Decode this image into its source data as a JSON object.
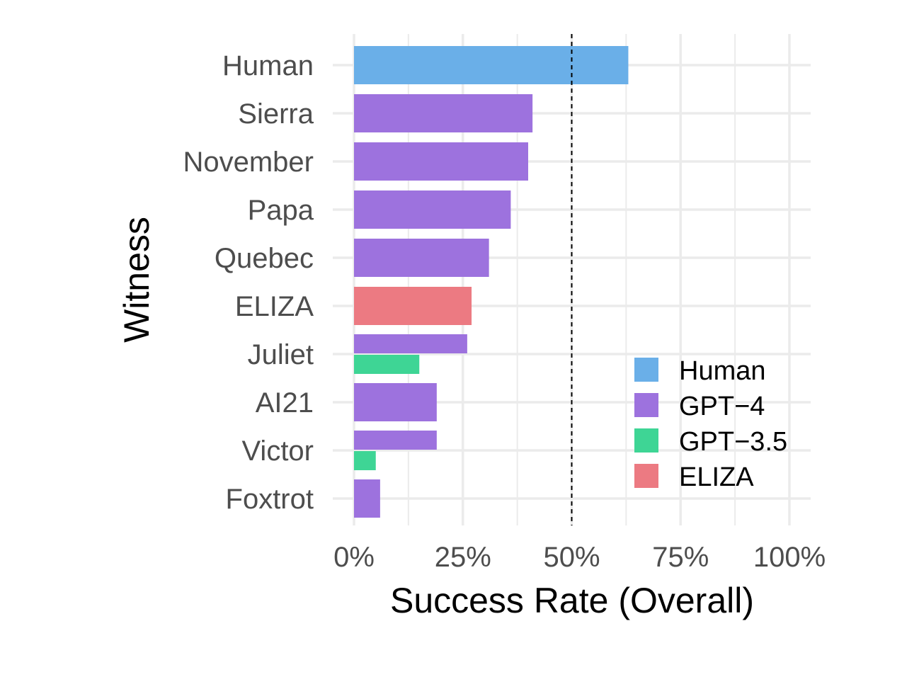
{
  "chart_data": {
    "type": "bar",
    "orientation": "horizontal",
    "title": "",
    "xlabel": "Success Rate (Overall)",
    "ylabel": "Witness",
    "xlim": [
      0,
      100
    ],
    "x_ticks": [
      0,
      25,
      50,
      75,
      100
    ],
    "x_tick_labels": [
      "0%",
      "25%",
      "50%",
      "75%",
      "100%"
    ],
    "reference_line": {
      "value": 50,
      "style": "dashed"
    },
    "categories": [
      "Human",
      "Sierra",
      "November",
      "Papa",
      "Quebec",
      "ELIZA",
      "Juliet",
      "AI21",
      "Victor",
      "Foxtrot"
    ],
    "series": [
      {
        "name": "Human",
        "color": "#6AAFE8",
        "values": [
          63,
          null,
          null,
          null,
          null,
          null,
          null,
          null,
          null,
          null
        ]
      },
      {
        "name": "GPT−4",
        "color": "#9D72DE",
        "values": [
          null,
          41,
          40,
          36,
          31,
          null,
          26,
          19,
          19,
          6
        ]
      },
      {
        "name": "GPT−3.5",
        "color": "#3ED595",
        "values": [
          null,
          null,
          null,
          null,
          null,
          null,
          15,
          null,
          5,
          null
        ]
      },
      {
        "name": "ELIZA",
        "color": "#EC7A82",
        "values": [
          null,
          null,
          null,
          null,
          null,
          27,
          null,
          null,
          null,
          null
        ]
      }
    ],
    "legend": {
      "position": "right",
      "entries": [
        "Human",
        "GPT−4",
        "GPT−3.5",
        "ELIZA"
      ]
    },
    "grid": true
  }
}
